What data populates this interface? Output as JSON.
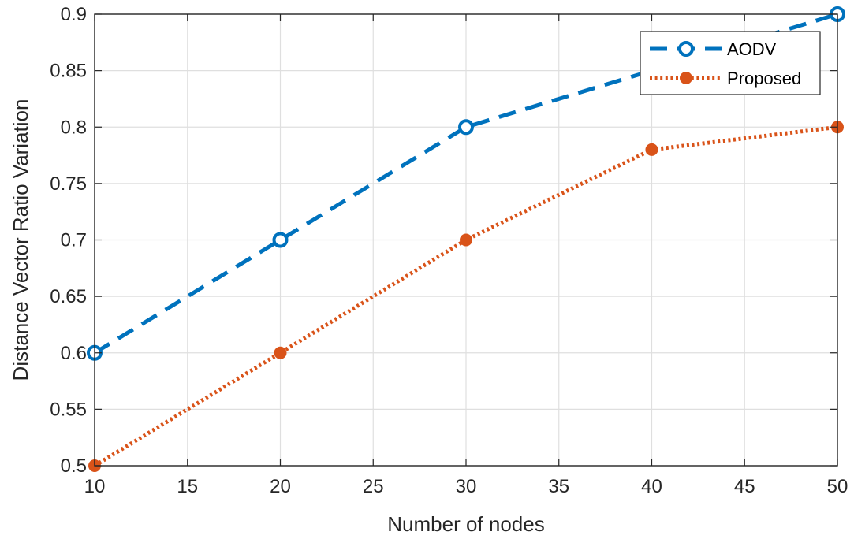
{
  "chart_data": {
    "type": "line",
    "xlabel": "Number of nodes",
    "ylabel": "Distance Vector Ratio Variation",
    "xlim": [
      10,
      50
    ],
    "ylim": [
      0.5,
      0.9
    ],
    "x_ticks": [
      "10",
      "15",
      "20",
      "25",
      "30",
      "35",
      "40",
      "45",
      "50"
    ],
    "y_ticks": [
      "0.5",
      "0.55",
      "0.6",
      "0.65",
      "0.7",
      "0.75",
      "0.8",
      "0.85",
      "0.9"
    ],
    "grid": true,
    "legend_position": "top-right",
    "series": [
      {
        "name": "AODV",
        "x": [
          10,
          20,
          30,
          40,
          50
        ],
        "values": [
          0.6,
          0.7,
          0.8,
          0.85,
          0.9
        ],
        "color": "#0072BD",
        "line_style": "dashed",
        "marker": "open-circle"
      },
      {
        "name": "Proposed",
        "x": [
          10,
          20,
          30,
          40,
          50
        ],
        "values": [
          0.5,
          0.6,
          0.7,
          0.78,
          0.8
        ],
        "color": "#D95319",
        "line_style": "dotted",
        "marker": "filled-circle"
      }
    ]
  }
}
